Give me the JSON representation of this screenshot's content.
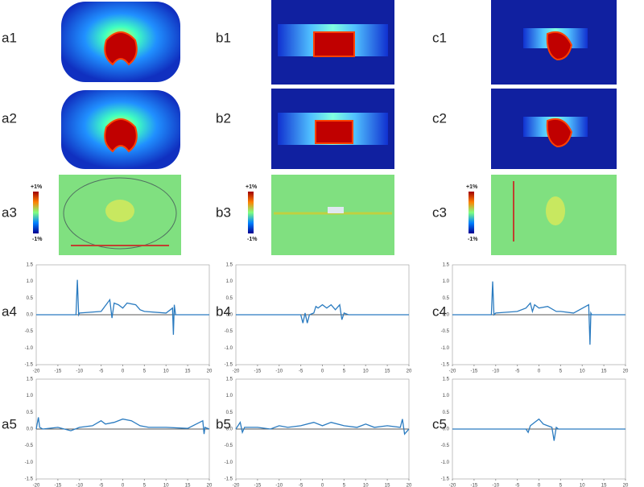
{
  "panels": [
    {
      "label": "a1"
    },
    {
      "label": "a2"
    },
    {
      "label": "a3"
    },
    {
      "label": "a4"
    },
    {
      "label": "a5"
    },
    {
      "label": "b1"
    },
    {
      "label": "b2"
    },
    {
      "label": "b3"
    },
    {
      "label": "b4"
    },
    {
      "label": "b5"
    },
    {
      "label": "c1"
    },
    {
      "label": "c2"
    },
    {
      "label": "c3"
    },
    {
      "label": "c4"
    },
    {
      "label": "c5"
    }
  ],
  "colorbars": [
    {
      "max": "+1%",
      "min": "-1%"
    },
    {
      "max": "+1%",
      "min": "-1%"
    },
    {
      "max": "+1%",
      "min": "-1%"
    }
  ],
  "chart_data": [
    {
      "type": "line",
      "color": "#2a7bc0",
      "x": [
        -20,
        -10.8,
        -10.5,
        -10.2,
        -10,
        -5,
        -3,
        -2.5,
        -2,
        -1,
        0,
        1,
        3,
        4,
        5,
        10,
        11.5,
        11.7,
        11.9,
        12.2,
        20
      ],
      "values": [
        0,
        0,
        1.05,
        0,
        0.05,
        0.1,
        0.45,
        -0.1,
        0.35,
        0.3,
        0.2,
        0.35,
        0.3,
        0.15,
        0.1,
        0.05,
        0.2,
        -0.6,
        0.3,
        0,
        0
      ],
      "xlim": [
        -20,
        20
      ],
      "xticks": [
        -20,
        -15,
        -10,
        -5,
        0,
        5,
        10,
        15,
        20
      ],
      "ylim": [
        -1.5,
        1.5
      ],
      "yticks": [
        {
          "value": 1.5,
          "label": "1.5"
        },
        {
          "value": 1,
          "label": "1.0"
        },
        {
          "value": 0.5,
          "label": "0.5"
        },
        {
          "value": 0,
          "label": "0.0"
        },
        {
          "value": -0.5,
          "label": "-0.5"
        },
        {
          "value": -1,
          "label": "-1.0"
        },
        {
          "value": -1.5,
          "label": "-1.5"
        }
      ]
    },
    {
      "type": "line",
      "color": "#2a7bc0",
      "x": [
        -20,
        -5,
        -4.5,
        -4,
        -3.5,
        -3,
        -2,
        -1.5,
        -1,
        0,
        1,
        2,
        3,
        4,
        4.5,
        5,
        6,
        20
      ],
      "values": [
        0,
        0,
        -0.25,
        0.05,
        -0.25,
        0,
        0.05,
        0.25,
        0.2,
        0.3,
        0.2,
        0.3,
        0.15,
        0.3,
        -0.15,
        0.05,
        0,
        0
      ],
      "xlim": [
        -20,
        20
      ],
      "xticks": [
        -20,
        -15,
        -10,
        -5,
        0,
        5,
        10,
        15,
        20
      ],
      "ylim": [
        -1.5,
        1.5
      ],
      "yticks": [
        {
          "value": 1.5,
          "label": "1.5"
        },
        {
          "value": 1,
          "label": "1.0"
        },
        {
          "value": 0.5,
          "label": "0.5"
        },
        {
          "value": 0,
          "label": "0.0"
        },
        {
          "value": -0.5,
          "label": "-0.5"
        },
        {
          "value": -1,
          "label": "-1.0"
        },
        {
          "value": -1.5,
          "label": "-1.5"
        }
      ]
    },
    {
      "type": "line",
      "color": "#2a7bc0",
      "x": [
        -20,
        -11,
        -10.7,
        -10.4,
        -10,
        -5,
        -3,
        -2,
        -1.5,
        -1,
        0,
        2,
        4,
        5,
        8,
        11.5,
        11.8,
        12,
        12.2,
        20
      ],
      "values": [
        0,
        0,
        1.0,
        0,
        0.05,
        0.1,
        0.2,
        0.35,
        0.1,
        0.3,
        0.2,
        0.25,
        0.1,
        0.1,
        0.05,
        0.3,
        -0.9,
        0.05,
        0,
        0
      ],
      "xlim": [
        -20,
        20
      ],
      "xticks": [
        -20,
        -15,
        -10,
        -5,
        0,
        5,
        10,
        15,
        20
      ],
      "ylim": [
        -1.5,
        1.5
      ],
      "yticks": [
        {
          "value": 1.5,
          "label": "1.5"
        },
        {
          "value": 1,
          "label": "1.0"
        },
        {
          "value": 0.5,
          "label": "0.5"
        },
        {
          "value": 0,
          "label": "0.0"
        },
        {
          "value": -0.5,
          "label": "-0.5"
        },
        {
          "value": -1,
          "label": "-1.0"
        },
        {
          "value": -1.5,
          "label": "-1.5"
        }
      ]
    },
    {
      "type": "line",
      "color": "#2a7bc0",
      "x": [
        -20,
        -19.5,
        -19.2,
        -18.5,
        -15,
        -12,
        -10,
        -7,
        -5,
        -4,
        -2,
        0,
        2,
        4,
        6,
        10,
        15,
        18.5,
        18.8,
        19,
        20
      ],
      "values": [
        0,
        0.35,
        0.05,
        0,
        0.05,
        -0.05,
        0.05,
        0.1,
        0.25,
        0.15,
        0.2,
        0.3,
        0.25,
        0.1,
        0.05,
        0.05,
        0.02,
        0.25,
        -0.15,
        0.05,
        0
      ],
      "xlim": [
        -20,
        20
      ],
      "xticks": [
        -20,
        -15,
        -10,
        -5,
        0,
        5,
        10,
        15,
        20
      ],
      "ylim": [
        -1.5,
        1.5
      ],
      "yticks": [
        {
          "value": 1.5,
          "label": "1.5"
        },
        {
          "value": 1,
          "label": "1.0"
        },
        {
          "value": 0.5,
          "label": "0.5"
        },
        {
          "value": 0,
          "label": "0.0"
        },
        {
          "value": -0.5,
          "label": "-0.5"
        },
        {
          "value": -1,
          "label": "-1.0"
        },
        {
          "value": -1.5,
          "label": "-1.5"
        }
      ]
    },
    {
      "type": "line",
      "color": "#2a7bc0",
      "x": [
        -20,
        -19,
        -18.5,
        -18,
        -15,
        -12,
        -10,
        -8,
        -5,
        -2,
        0,
        2,
        5,
        8,
        10,
        12,
        15,
        18,
        18.5,
        19,
        20
      ],
      "values": [
        0,
        0.2,
        -0.1,
        0.05,
        0.05,
        0,
        0.1,
        0.05,
        0.1,
        0.2,
        0.1,
        0.2,
        0.1,
        0.05,
        0.15,
        0.05,
        0.1,
        0.05,
        0.3,
        -0.15,
        0
      ],
      "xlim": [
        -20,
        20
      ],
      "xticks": [
        -20,
        -15,
        -10,
        -5,
        0,
        5,
        10,
        15,
        20
      ],
      "ylim": [
        -1.5,
        1.5
      ],
      "yticks": [
        {
          "value": 1.5,
          "label": "1.5"
        },
        {
          "value": 1,
          "label": "1.0"
        },
        {
          "value": 0.5,
          "label": "0.5"
        },
        {
          "value": 0,
          "label": "0.0"
        },
        {
          "value": -0.5,
          "label": "-0.5"
        },
        {
          "value": -1,
          "label": "-1.0"
        },
        {
          "value": -1.5,
          "label": "-1.5"
        }
      ]
    },
    {
      "type": "line",
      "color": "#2a7bc0",
      "x": [
        -20,
        -3,
        -2.5,
        -2,
        -1,
        0,
        1,
        2,
        3,
        3.5,
        4,
        4.5,
        5,
        20
      ],
      "values": [
        0,
        0,
        -0.1,
        0.1,
        0.2,
        0.3,
        0.15,
        0.1,
        0.05,
        -0.35,
        0.05,
        0,
        0,
        0
      ],
      "xlim": [
        -20,
        20
      ],
      "xticks": [
        -20,
        -15,
        -10,
        -5,
        0,
        5,
        10,
        15,
        20
      ],
      "ylim": [
        -1.5,
        1.5
      ],
      "yticks": [
        {
          "value": 1.5,
          "label": "1.5"
        },
        {
          "value": 1,
          "label": "1.0"
        },
        {
          "value": 0.5,
          "label": "0.5"
        },
        {
          "value": 0,
          "label": "0.0"
        },
        {
          "value": -0.5,
          "label": "-0.5"
        },
        {
          "value": -1,
          "label": "-1.0"
        },
        {
          "value": -1.5,
          "label": "-1.5"
        }
      ]
    }
  ]
}
